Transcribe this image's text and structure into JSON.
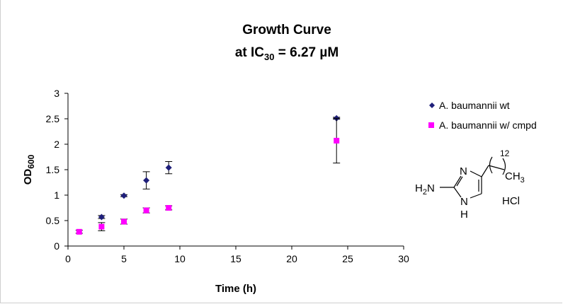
{
  "chart_data": {
    "type": "scatter",
    "title": "Growth Curve",
    "subtitle": {
      "prefix": "at IC",
      "sub": "30",
      "suffix": " = 6.27 µM"
    },
    "xlabel": "Time (h)",
    "ylabel": {
      "main": "OD",
      "sub": "600"
    },
    "xlim": [
      0,
      30
    ],
    "ylim": [
      0,
      3
    ],
    "xticks": [
      0,
      5,
      10,
      15,
      20,
      25,
      30
    ],
    "yticks": [
      0,
      0.5,
      1,
      1.5,
      2,
      2.5,
      3
    ],
    "ytick_labels": [
      "0",
      "0.5",
      "1",
      "1.5",
      "2",
      "2.5",
      "3"
    ],
    "grid": false,
    "legend_position": "right",
    "series": [
      {
        "name": "A. baumannii wt",
        "marker": "diamond",
        "color": "#1f1f7a",
        "x": [
          3,
          5,
          7,
          9,
          24
        ],
        "y": [
          0.57,
          0.99,
          1.29,
          1.54,
          2.51
        ],
        "err": [
          0.03,
          0.02,
          0.17,
          0.12,
          0.02
        ]
      },
      {
        "name": "A. baumannii w/ cmpd",
        "marker": "square",
        "color": "#ff00ff",
        "x": [
          1,
          3,
          5,
          7,
          9,
          24
        ],
        "y": [
          0.28,
          0.38,
          0.48,
          0.7,
          0.75,
          2.07
        ],
        "err": [
          0.03,
          0.08,
          0.05,
          0.05,
          0.04,
          0.44
        ]
      }
    ]
  },
  "structure": {
    "amine": {
      "main": "H",
      "sub": "2",
      "tail": "N"
    },
    "n_top": "N",
    "n_bottom": "N",
    "h_bottom": "H",
    "chain_count": "12",
    "methyl": {
      "main": "CH",
      "sub": "3"
    },
    "salt": "HCl"
  }
}
